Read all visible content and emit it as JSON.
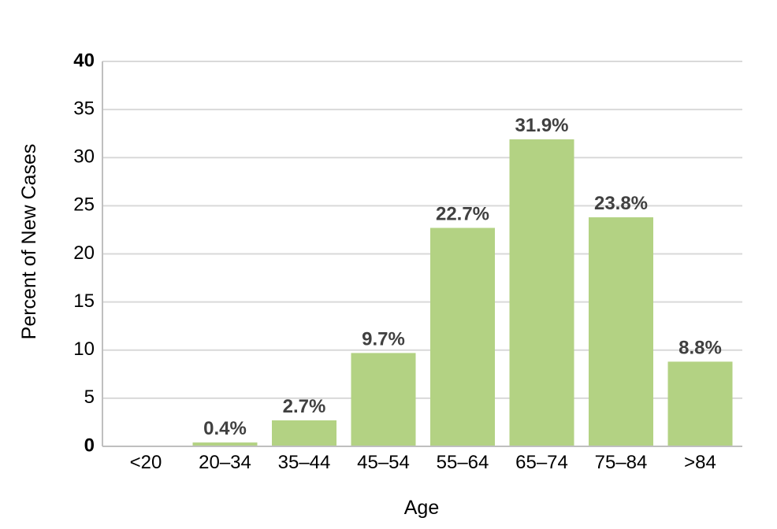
{
  "chart_data": {
    "type": "bar",
    "title": "",
    "xlabel": "Age",
    "ylabel": "Percent of New Cases",
    "ylim": [
      0,
      40
    ],
    "yticks": [
      {
        "value": 0,
        "label": "0"
      },
      {
        "value": 5,
        "label": "5"
      },
      {
        "value": 10,
        "label": "10"
      },
      {
        "value": 15,
        "label": "15"
      },
      {
        "value": 20,
        "label": "20"
      },
      {
        "value": 25,
        "label": "25"
      },
      {
        "value": 30,
        "label": "30"
      },
      {
        "value": 35,
        "label": "35"
      },
      {
        "value": 40,
        "label": "40"
      }
    ],
    "categories": [
      "<20",
      "20–34",
      "35–44",
      "45–54",
      "55–64",
      "65–74",
      "75–84",
      ">84"
    ],
    "values": [
      0,
      0.4,
      2.7,
      9.7,
      22.7,
      31.9,
      23.8,
      8.8
    ],
    "data_labels": [
      "",
      "0.4%",
      "2.7%",
      "9.7%",
      "22.7%",
      "31.9%",
      "23.8%",
      "8.8%"
    ],
    "grid": true,
    "legend": "none",
    "bar_color": "#b3d283"
  }
}
